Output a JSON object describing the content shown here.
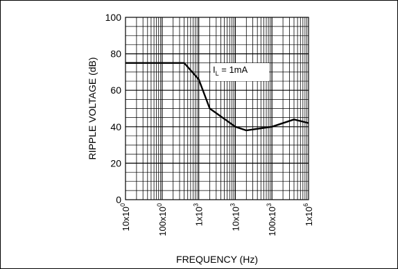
{
  "chart_data": {
    "type": "line",
    "title": "",
    "xlabel": "FREQUENCY (Hz)",
    "ylabel": "RIPPLE VOLTAGE (dB)",
    "x_scale": "log",
    "xlim": [
      10,
      1000000
    ],
    "ylim": [
      0,
      100
    ],
    "grid": true,
    "x_tick_labels": [
      {
        "base": "10x10",
        "exp": "0",
        "value": 10
      },
      {
        "base": "100x10",
        "exp": "0",
        "value": 100
      },
      {
        "base": "1x10",
        "exp": "3",
        "value": 1000
      },
      {
        "base": "10x10",
        "exp": "3",
        "value": 10000
      },
      {
        "base": "100x10",
        "exp": "3",
        "value": 100000
      },
      {
        "base": "1x10",
        "exp": "6",
        "value": 1000000
      }
    ],
    "y_tick_labels": [
      "0",
      "20",
      "40",
      "60",
      "80",
      "100"
    ],
    "y_ticks": [
      0,
      20,
      40,
      60,
      80,
      100
    ],
    "annotation": {
      "main": "I",
      "sub": "L",
      "rest": " = 1mA"
    },
    "series": [
      {
        "x": [
          10,
          400,
          1000,
          2000,
          10000,
          20000,
          100000,
          400000,
          1000000
        ],
        "y": [
          75,
          75,
          66,
          50,
          40,
          38,
          40,
          44,
          42
        ]
      }
    ]
  }
}
